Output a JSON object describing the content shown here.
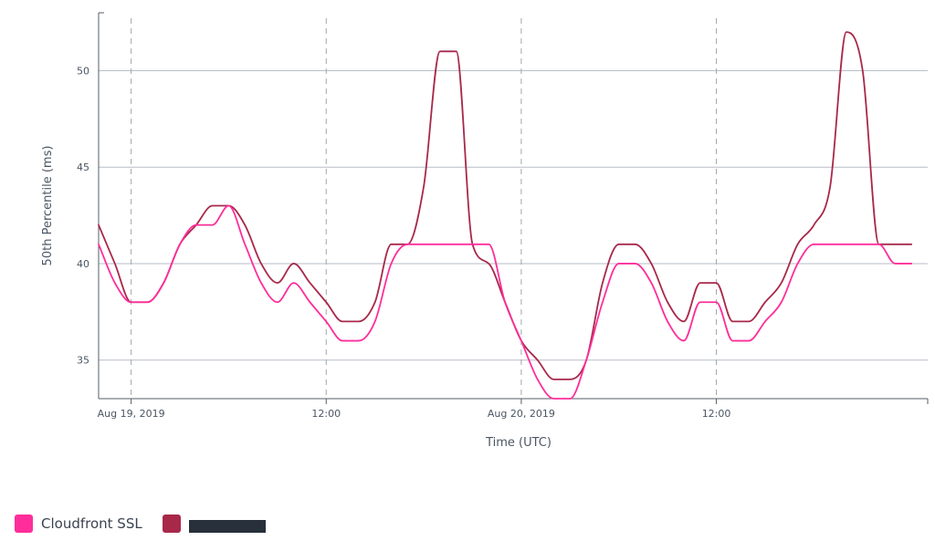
{
  "chart_data": {
    "type": "line",
    "xlabel": "Time (UTC)",
    "ylabel": "50th Percentile (ms)",
    "x_ticks": [
      {
        "label": "Aug 19, 2019",
        "value": "2019-08-19 00:00"
      },
      {
        "label": "12:00",
        "value": "2019-08-19 12:00"
      },
      {
        "label": "Aug 20, 2019",
        "value": "2019-08-20 00:00"
      },
      {
        "label": "12:00",
        "value": "2019-08-20 12:00"
      }
    ],
    "y_ticks": [
      35,
      40,
      45,
      50
    ],
    "xlim": [
      "2019-08-18 22:00",
      "2019-08-21 01:00"
    ],
    "ylim": [
      33,
      53
    ],
    "grid": {
      "horizontal": true,
      "vertical_dashed": true
    },
    "legend_position": "bottom-left",
    "x": [
      "2019-08-18 22:00",
      "2019-08-18 23:00",
      "2019-08-19 00:00",
      "2019-08-19 01:00",
      "2019-08-19 02:00",
      "2019-08-19 03:00",
      "2019-08-19 04:00",
      "2019-08-19 05:00",
      "2019-08-19 06:00",
      "2019-08-19 07:00",
      "2019-08-19 08:00",
      "2019-08-19 09:00",
      "2019-08-19 10:00",
      "2019-08-19 11:00",
      "2019-08-19 12:00",
      "2019-08-19 13:00",
      "2019-08-19 14:00",
      "2019-08-19 15:00",
      "2019-08-19 16:00",
      "2019-08-19 17:00",
      "2019-08-19 18:00",
      "2019-08-19 19:00",
      "2019-08-19 20:00",
      "2019-08-19 21:00",
      "2019-08-19 22:00",
      "2019-08-19 23:00",
      "2019-08-20 00:00",
      "2019-08-20 01:00",
      "2019-08-20 02:00",
      "2019-08-20 03:00",
      "2019-08-20 04:00",
      "2019-08-20 05:00",
      "2019-08-20 06:00",
      "2019-08-20 07:00",
      "2019-08-20 08:00",
      "2019-08-20 09:00",
      "2019-08-20 10:00",
      "2019-08-20 11:00",
      "2019-08-20 12:00",
      "2019-08-20 13:00",
      "2019-08-20 14:00",
      "2019-08-20 15:00",
      "2019-08-20 16:00",
      "2019-08-20 17:00",
      "2019-08-20 18:00",
      "2019-08-20 19:00",
      "2019-08-20 20:00",
      "2019-08-20 21:00",
      "2019-08-20 22:00",
      "2019-08-20 23:00",
      "2019-08-21 00:00"
    ],
    "series": [
      {
        "name": "Cloudfront SSL",
        "color": "#ff2d9a",
        "values": [
          41,
          39,
          38,
          38,
          39,
          41,
          42,
          42,
          43,
          41,
          39,
          38,
          39,
          38,
          37,
          36,
          36,
          37,
          40,
          41,
          41,
          41,
          41,
          41,
          41,
          38,
          36,
          34,
          33,
          33,
          35,
          38,
          40,
          40,
          39,
          37,
          36,
          38,
          38,
          36,
          36,
          37,
          38,
          40,
          41,
          41,
          41,
          41,
          41,
          40,
          40
        ]
      },
      {
        "name": "",
        "color": "#a8284a",
        "values": [
          42,
          40,
          38,
          38,
          39,
          41,
          42,
          43,
          43,
          42,
          40,
          39,
          40,
          39,
          38,
          37,
          37,
          38,
          41,
          41,
          44,
          51,
          51,
          41,
          40,
          38,
          36,
          35,
          34,
          34,
          35,
          39,
          41,
          41,
          40,
          38,
          37,
          39,
          39,
          37,
          37,
          38,
          39,
          41,
          42,
          44,
          52,
          50,
          41,
          41,
          41
        ]
      }
    ]
  },
  "legend": {
    "items": [
      {
        "label": "Cloudfront SSL",
        "color": "#ff2d9a"
      },
      {
        "label": "",
        "color": "#a8284a"
      }
    ]
  }
}
